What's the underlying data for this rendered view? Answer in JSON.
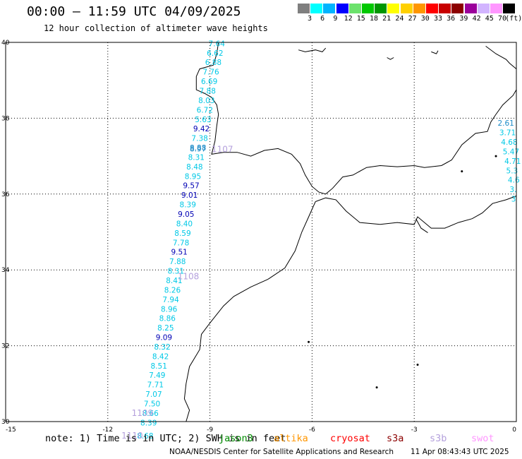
{
  "title": "00:00 – 11:59 UTC 04/09/2025",
  "subtitle": "12 hour collection of altimeter wave heights",
  "colorbar": {
    "unit": "(ft)",
    "colors": [
      "#7f7f7f",
      "#00ffff",
      "#00b4ff",
      "#0000ff",
      "#6ce26c",
      "#00c800",
      "#009600",
      "#ffff00",
      "#ffd000",
      "#ff9600",
      "#ff0000",
      "#c80000",
      "#8c0000",
      "#9b009b",
      "#d2b4ff",
      "#ff96ff",
      "#000000"
    ],
    "labels": [
      "3",
      "6",
      "9",
      "12",
      "15",
      "18",
      "21",
      "24",
      "27",
      "30",
      "33",
      "36",
      "39",
      "42",
      "45",
      "70"
    ]
  },
  "map": {
    "lon_range": [
      -15,
      0
    ],
    "lat_range": [
      30,
      40
    ],
    "lon_ticks": [
      -15,
      -12,
      -9,
      -6,
      -3,
      0
    ],
    "lat_ticks": [
      40,
      38,
      36,
      34,
      32,
      30
    ],
    "lon_labels": [
      "-15",
      "-12",
      "-9",
      "-6",
      "-3",
      "0"
    ],
    "lat_labels": [
      "40",
      "38",
      "36",
      "34",
      "32",
      "30"
    ]
  },
  "colors": {
    "light_cyan": "#00c8e6",
    "mid_blue": "#1e8cc8",
    "dark_blue": "#0000b4",
    "time_label": "#b4a0dc",
    "coast": "#000000"
  },
  "track_main": [
    {
      "v": "7.64",
      "lon": -8.8,
      "lat": 39.9,
      "c": "light_cyan"
    },
    {
      "v": "6.62",
      "lon": -8.85,
      "lat": 39.65,
      "c": "light_cyan"
    },
    {
      "v": "6.88",
      "lon": -8.9,
      "lat": 39.4,
      "c": "light_cyan"
    },
    {
      "v": "7.76",
      "lon": -8.97,
      "lat": 39.15,
      "c": "light_cyan"
    },
    {
      "v": "6.69",
      "lon": -9.02,
      "lat": 38.9,
      "c": "light_cyan"
    },
    {
      "v": "7.88",
      "lon": -9.07,
      "lat": 38.65,
      "c": "light_cyan"
    },
    {
      "v": "8.03",
      "lon": -9.1,
      "lat": 38.4,
      "c": "light_cyan"
    },
    {
      "v": "6.72",
      "lon": -9.15,
      "lat": 38.15,
      "c": "light_cyan"
    },
    {
      "v": "5.63",
      "lon": -9.2,
      "lat": 37.9,
      "c": "light_cyan"
    },
    {
      "v": "9.42",
      "lon": -9.25,
      "lat": 37.65,
      "c": "dark_blue"
    },
    {
      "v": "7.38",
      "lon": -9.3,
      "lat": 37.4,
      "c": "light_cyan"
    },
    {
      "v": "8.88",
      "lon": -9.35,
      "lat": 37.15,
      "c": "mid_blue"
    },
    {
      "v": "8.97",
      "lon": -9.35,
      "lat": 37.12,
      "c": "mid_blue"
    },
    {
      "v": "8.31",
      "lon": -9.4,
      "lat": 36.9,
      "c": "light_cyan"
    },
    {
      "v": "8.48",
      "lon": -9.45,
      "lat": 36.65,
      "c": "light_cyan"
    },
    {
      "v": "8.95",
      "lon": -9.5,
      "lat": 36.4,
      "c": "light_cyan"
    },
    {
      "v": "9.57",
      "lon": -9.55,
      "lat": 36.15,
      "c": "dark_blue"
    },
    {
      "v": "9.01",
      "lon": -9.6,
      "lat": 35.9,
      "c": "dark_blue"
    },
    {
      "v": "8.39",
      "lon": -9.65,
      "lat": 35.65,
      "c": "light_cyan"
    },
    {
      "v": "9.05",
      "lon": -9.7,
      "lat": 35.4,
      "c": "dark_blue"
    },
    {
      "v": "8.40",
      "lon": -9.75,
      "lat": 35.15,
      "c": "light_cyan"
    },
    {
      "v": "8.59",
      "lon": -9.8,
      "lat": 34.9,
      "c": "light_cyan"
    },
    {
      "v": "7.78",
      "lon": -9.85,
      "lat": 34.65,
      "c": "light_cyan"
    },
    {
      "v": "9.51",
      "lon": -9.9,
      "lat": 34.4,
      "c": "dark_blue"
    },
    {
      "v": "7.88",
      "lon": -9.95,
      "lat": 34.15,
      "c": "light_cyan"
    },
    {
      "v": "8.31",
      "lon": -10.0,
      "lat": 33.9,
      "c": "light_cyan"
    },
    {
      "v": "8.41",
      "lon": -10.05,
      "lat": 33.65,
      "c": "light_cyan"
    },
    {
      "v": "8.26",
      "lon": -10.1,
      "lat": 33.4,
      "c": "light_cyan"
    },
    {
      "v": "7.94",
      "lon": -10.15,
      "lat": 33.15,
      "c": "light_cyan"
    },
    {
      "v": "8.96",
      "lon": -10.2,
      "lat": 32.9,
      "c": "light_cyan"
    },
    {
      "v": "8.86",
      "lon": -10.25,
      "lat": 32.65,
      "c": "light_cyan"
    },
    {
      "v": "8.25",
      "lon": -10.3,
      "lat": 32.4,
      "c": "light_cyan"
    },
    {
      "v": "9.09",
      "lon": -10.35,
      "lat": 32.15,
      "c": "dark_blue"
    },
    {
      "v": "8.32",
      "lon": -10.4,
      "lat": 31.9,
      "c": "light_cyan"
    },
    {
      "v": "8.42",
      "lon": -10.45,
      "lat": 31.65,
      "c": "light_cyan"
    },
    {
      "v": "8.51",
      "lon": -10.5,
      "lat": 31.4,
      "c": "light_cyan"
    },
    {
      "v": "7.49",
      "lon": -10.55,
      "lat": 31.15,
      "c": "light_cyan"
    },
    {
      "v": "7.71",
      "lon": -10.6,
      "lat": 30.9,
      "c": "light_cyan"
    },
    {
      "v": "7.07",
      "lon": -10.65,
      "lat": 30.65,
      "c": "light_cyan"
    },
    {
      "v": "7.50",
      "lon": -10.7,
      "lat": 30.4,
      "c": "light_cyan"
    },
    {
      "v": "8.66",
      "lon": -10.75,
      "lat": 30.15,
      "c": "light_cyan"
    },
    {
      "v": "8.39",
      "lon": -10.8,
      "lat": 29.9,
      "c": "light_cyan"
    },
    {
      "v": "8.68",
      "lon": -10.9,
      "lat": 29.55,
      "c": "light_cyan"
    }
  ],
  "track_east": [
    {
      "v": "2.61",
      "lon": -0.55,
      "lat": 37.8,
      "c": "mid_blue"
    },
    {
      "v": "3.71",
      "lon": -0.5,
      "lat": 37.55,
      "c": "light_cyan"
    },
    {
      "v": "4.68",
      "lon": -0.45,
      "lat": 37.3,
      "c": "light_cyan"
    },
    {
      "v": "5.47",
      "lon": -0.4,
      "lat": 37.05,
      "c": "light_cyan"
    },
    {
      "v": "4.71",
      "lon": -0.35,
      "lat": 36.8,
      "c": "light_cyan"
    },
    {
      "v": "5.3",
      "lon": -0.3,
      "lat": 36.55,
      "c": "light_cyan"
    },
    {
      "v": "4.6",
      "lon": -0.25,
      "lat": 36.3,
      "c": "light_cyan"
    },
    {
      "v": "3.",
      "lon": -0.2,
      "lat": 36.05,
      "c": "light_cyan"
    },
    {
      "v": "3",
      "lon": -0.15,
      "lat": 35.8,
      "c": "light_cyan"
    }
  ],
  "time_labels": [
    {
      "t": "1107",
      "lon": -8.95,
      "lat": 37.1
    },
    {
      "t": "1108",
      "lon": -9.95,
      "lat": 33.75
    },
    {
      "t": "1109",
      "lon": -11.3,
      "lat": 30.15
    },
    {
      "t": "1110",
      "lon": -11.6,
      "lat": 29.55
    }
  ],
  "note": {
    "text": "note: 1) Time is in UTC; 2) SWH is in feet",
    "sats": [
      {
        "name": "jason3",
        "color": "#008c00"
      },
      {
        "name": "altika",
        "color": "#ff9600"
      },
      {
        "name": "cryosat",
        "color": "#ff0000"
      },
      {
        "name": "s3a",
        "color": "#8c0000"
      },
      {
        "name": "s3b",
        "color": "#b4a0dc"
      },
      {
        "name": "swot",
        "color": "#ff96ff"
      }
    ]
  },
  "credit": {
    "org": "NOAA/NESDIS Center for Satellite Applications and Research",
    "timestamp": "11 Apr 08:43:43 UTC 2025"
  }
}
